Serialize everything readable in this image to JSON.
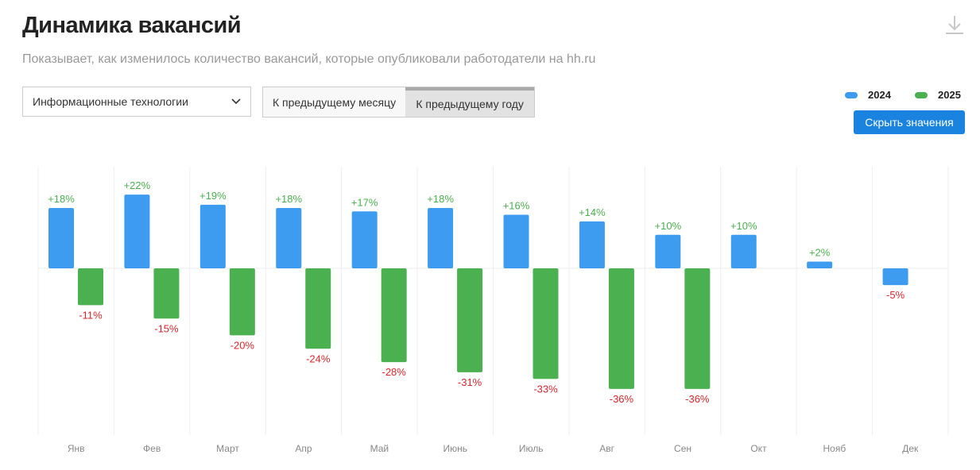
{
  "header": {
    "title": "Динамика вакансий",
    "subtitle": "Показывает, как изменилось количество вакансий, которые опубликовали работодатели на hh.ru",
    "download_icon": "download-icon"
  },
  "controls": {
    "industry": "Информационные технологии",
    "tabs": [
      "К предыдущему месяцу",
      "К предыдущему году"
    ],
    "active_tab": 1,
    "hide_button": "Скрыть значения"
  },
  "chart_data": {
    "type": "bar",
    "title": "Динамика вакансий",
    "categories": [
      "Янв",
      "Фев",
      "Март",
      "Апр",
      "Май",
      "Июнь",
      "Июль",
      "Авг",
      "Сен",
      "Окт",
      "Нояб",
      "Дек"
    ],
    "series": [
      {
        "name": "2024",
        "color": "#3d9cf0",
        "values": [
          18,
          22,
          19,
          18,
          17,
          18,
          16,
          14,
          10,
          10,
          2,
          -5
        ]
      },
      {
        "name": "2025",
        "color": "#4bb04f",
        "values": [
          -11,
          -15,
          -20,
          -24,
          -28,
          -31,
          -33,
          -36,
          -36,
          null,
          null,
          null
        ]
      }
    ],
    "unit": "%",
    "positive_label_color": "#4bb04f",
    "negative_label_color": "#d9262e",
    "ylim": [
      -50,
      30
    ],
    "legend": "top-right"
  }
}
